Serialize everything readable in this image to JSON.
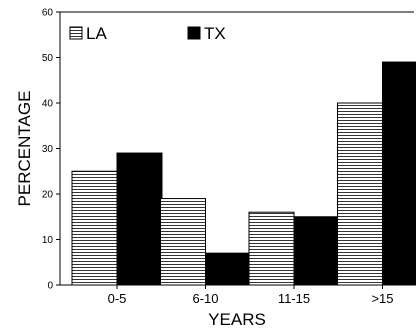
{
  "chart_data": {
    "type": "bar",
    "categories": [
      "0-5",
      "6-10",
      "11-15",
      ">15"
    ],
    "series": [
      {
        "name": "LA",
        "values": [
          25,
          19,
          16,
          40
        ],
        "pattern": "horizontal-stripes",
        "color": "#ffffff"
      },
      {
        "name": "TX",
        "values": [
          29,
          7,
          15,
          49
        ],
        "pattern": "solid",
        "color": "#000000"
      }
    ],
    "xlabel": "YEARS",
    "ylabel": "PERCENTAGE",
    "ylim": [
      0,
      60
    ],
    "yticks": [
      0,
      10,
      20,
      30,
      40,
      50,
      60
    ],
    "grid": false,
    "legend_position": "top-left"
  }
}
